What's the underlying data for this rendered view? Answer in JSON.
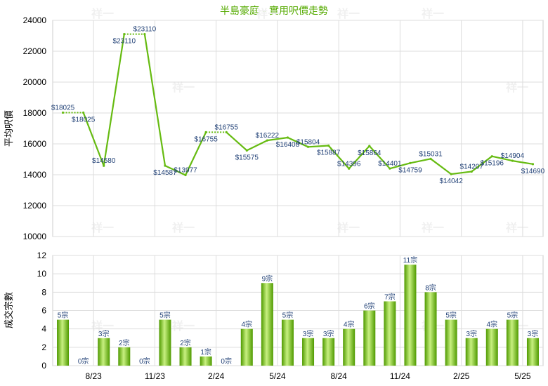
{
  "chart_data": [
    {
      "type": "line",
      "title": "半島豪庭 - 實用呎價走勢",
      "ylabel": "平均呎價",
      "ylim": [
        10000,
        24000
      ],
      "yticks": [
        "10000",
        "12000",
        "14000",
        "16000",
        "18000",
        "20000",
        "22000",
        "24000"
      ],
      "grid": true,
      "series": [
        {
          "values": [
            18025,
            18025,
            14580,
            23110,
            23110,
            14587,
            13977,
            16755,
            16755,
            15575,
            16222,
            16408,
            15804,
            15887,
            14396,
            15864,
            14401,
            14759,
            15031,
            14042,
            14207,
            15196,
            14904,
            14690
          ],
          "labels": [
            "$18025",
            "$18025",
            "$14580",
            "$23110",
            "$23110",
            "$14587",
            "$13977",
            "$16755",
            "$16755",
            "$15575",
            "$16222",
            "$16408",
            "$15804",
            "$15887",
            "$14396",
            "$15864",
            "$14401",
            "$14759",
            "$15031",
            "$14042",
            "$14207",
            "$15196",
            "$14904",
            "$14690"
          ],
          "dotted_segments_after": [
            0,
            3,
            7
          ]
        }
      ]
    },
    {
      "type": "bar",
      "ylabel": "成交宗數",
      "ylim": [
        0,
        12
      ],
      "yticks": [
        "0",
        "2",
        "4",
        "6",
        "8",
        "10",
        "12"
      ],
      "grid": true,
      "values": [
        5,
        0,
        3,
        2,
        0,
        5,
        2,
        1,
        0,
        4,
        9,
        5,
        3,
        3,
        4,
        6,
        7,
        11,
        8,
        5,
        3,
        4,
        5,
        3
      ],
      "labels": [
        "5宗",
        "0宗",
        "3宗",
        "2宗",
        "0宗",
        "5宗",
        "2宗",
        "1宗",
        "0宗",
        "4宗",
        "9宗",
        "5宗",
        "3宗",
        "3宗",
        "4宗",
        "6宗",
        "7宗",
        "11宗",
        "8宗",
        "5宗",
        "3宗",
        "4宗",
        "5宗",
        "3宗"
      ],
      "categories": [
        "8/23",
        "11/23",
        "2/24",
        "5/24",
        "8/24",
        "11/24",
        "2/25",
        "5/25"
      ],
      "category_after_index": [
        1,
        4,
        7,
        10,
        13,
        16,
        19,
        22
      ]
    }
  ],
  "colors": {
    "line": "#66bb11",
    "bar_light": "#c8f080",
    "bar_dark": "#4f9a00",
    "grid": "#dddddd",
    "title": "#55aa00",
    "data_label": "#1f3f75"
  },
  "watermark": "祥一"
}
